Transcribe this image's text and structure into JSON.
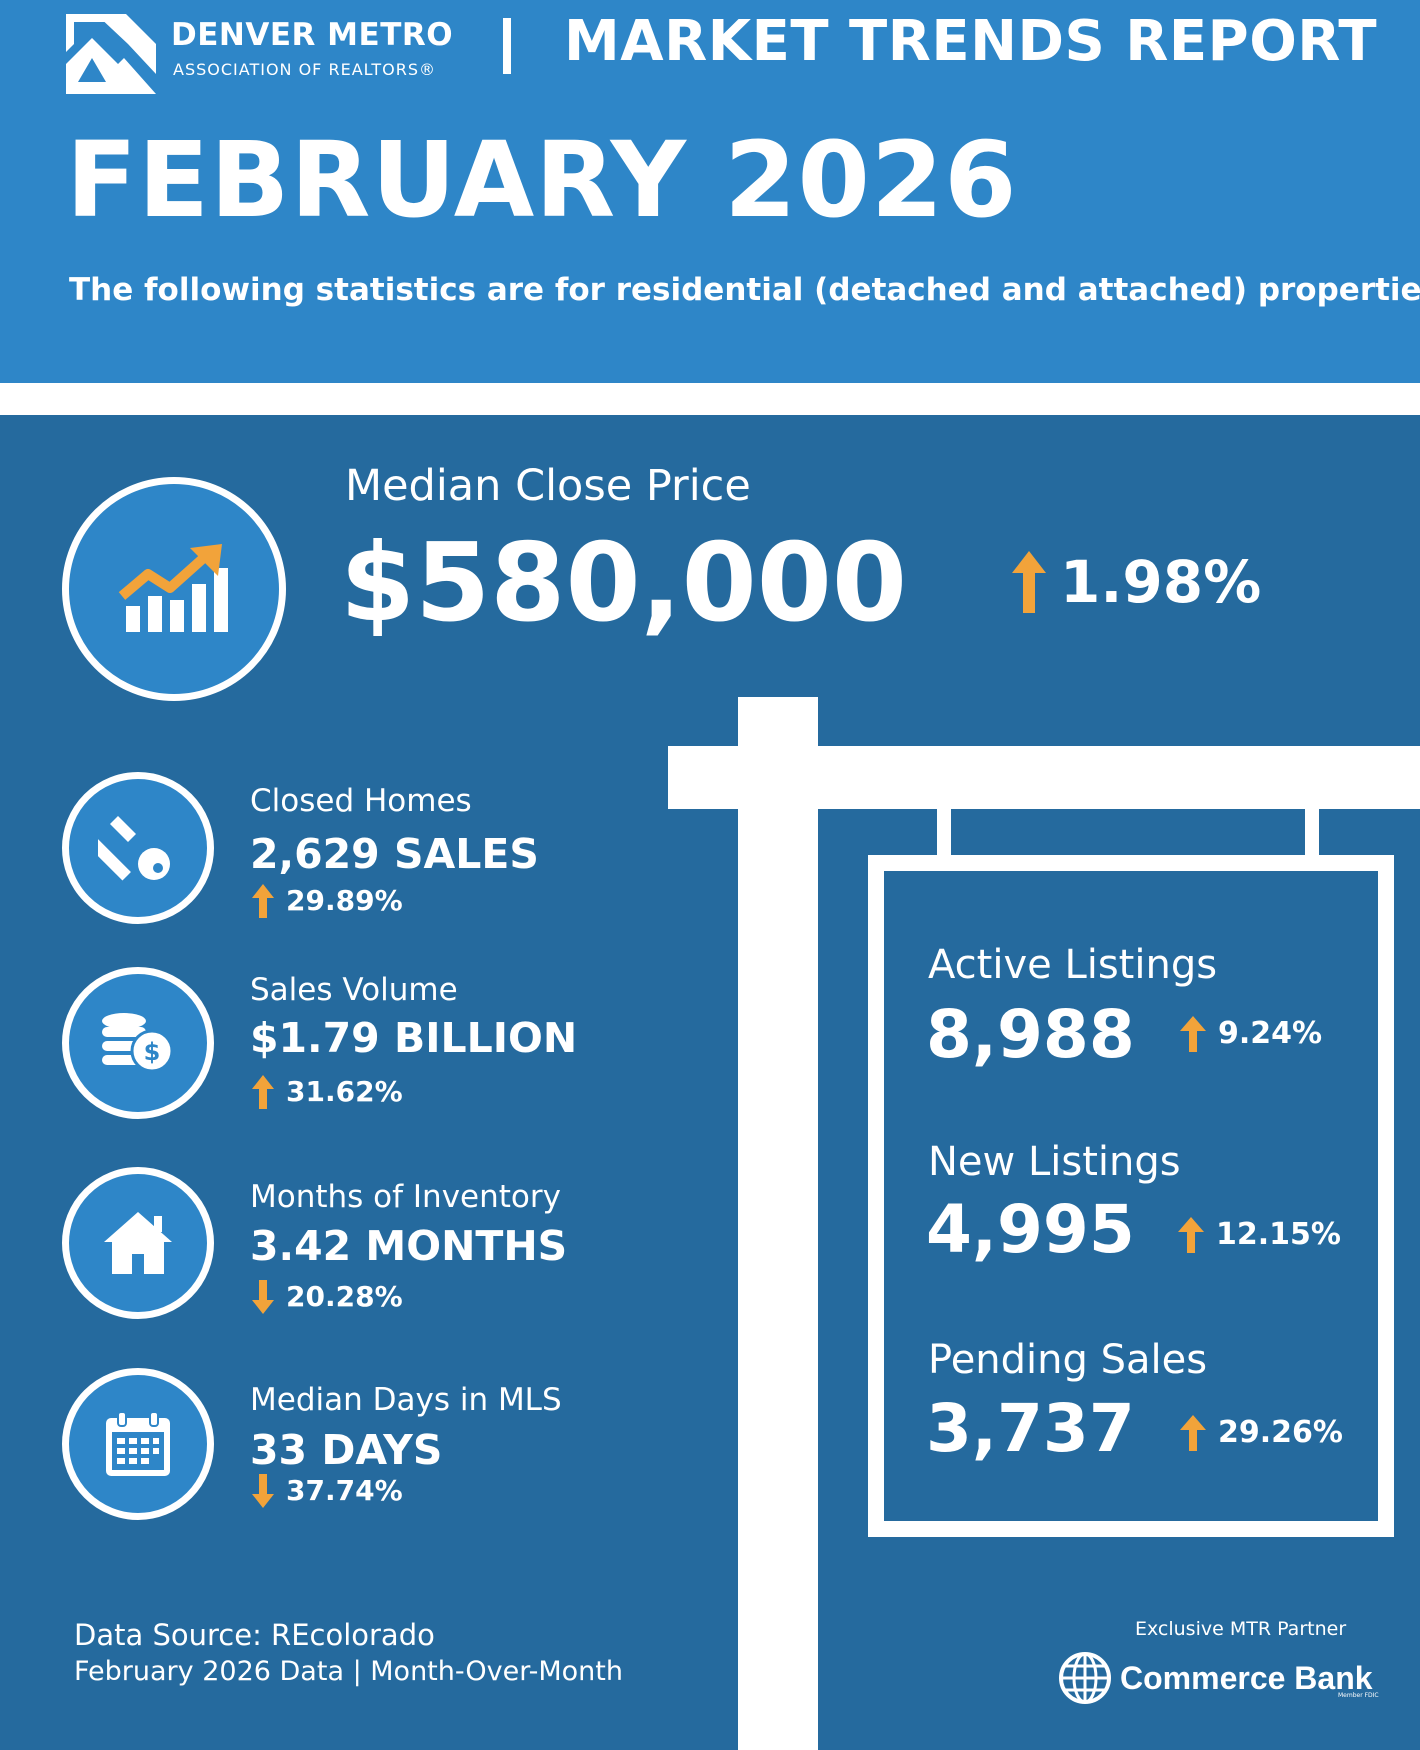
{
  "header": {
    "org_name": "DENVER METRO",
    "org_subtitle": "ASSOCIATION OF REALTORS®",
    "report_title": "MARKET TRENDS REPORT",
    "month_title": "FEBRUARY 2026",
    "subtitle": "The following statistics are for residential (detached and attached) properties."
  },
  "headline": {
    "label": "Median Close Price",
    "value": "$580,000",
    "change": "1.98%",
    "direction": "up",
    "icon": "rising-chart-icon"
  },
  "stats": [
    {
      "label": "Closed Homes",
      "value": "2,629 SALES",
      "change": "29.89%",
      "direction": "up",
      "icon": "key-icon"
    },
    {
      "label": "Sales Volume",
      "value": "$1.79 BILLION",
      "change": "31.62%",
      "direction": "up",
      "icon": "coins-icon"
    },
    {
      "label": "Months of Inventory",
      "value": "3.42 MONTHS",
      "change": "20.28%",
      "direction": "down",
      "icon": "house-icon"
    },
    {
      "label": "Median Days in MLS",
      "value": "33 DAYS",
      "change": "37.74%",
      "direction": "down",
      "icon": "calendar-icon"
    }
  ],
  "sign": [
    {
      "label": "Active Listings",
      "value": "8,988",
      "change": "9.24%",
      "direction": "up"
    },
    {
      "label": "New Listings",
      "value": "4,995",
      "change": "12.15%",
      "direction": "up"
    },
    {
      "label": "Pending Sales",
      "value": "3,737",
      "change": "29.26%",
      "direction": "up"
    }
  ],
  "footer": {
    "source": "Data Source: REcolorado",
    "period": "February 2026 Data | Month-Over-Month",
    "partner_label": "Exclusive MTR Partner",
    "partner_name": "Commerce Bank",
    "partner_member": "Member FDIC"
  },
  "colors": {
    "header_bg": "#2e86c8",
    "main_bg": "#256a9e",
    "accent_arrow": "#f2a33a",
    "text": "#ffffff"
  }
}
